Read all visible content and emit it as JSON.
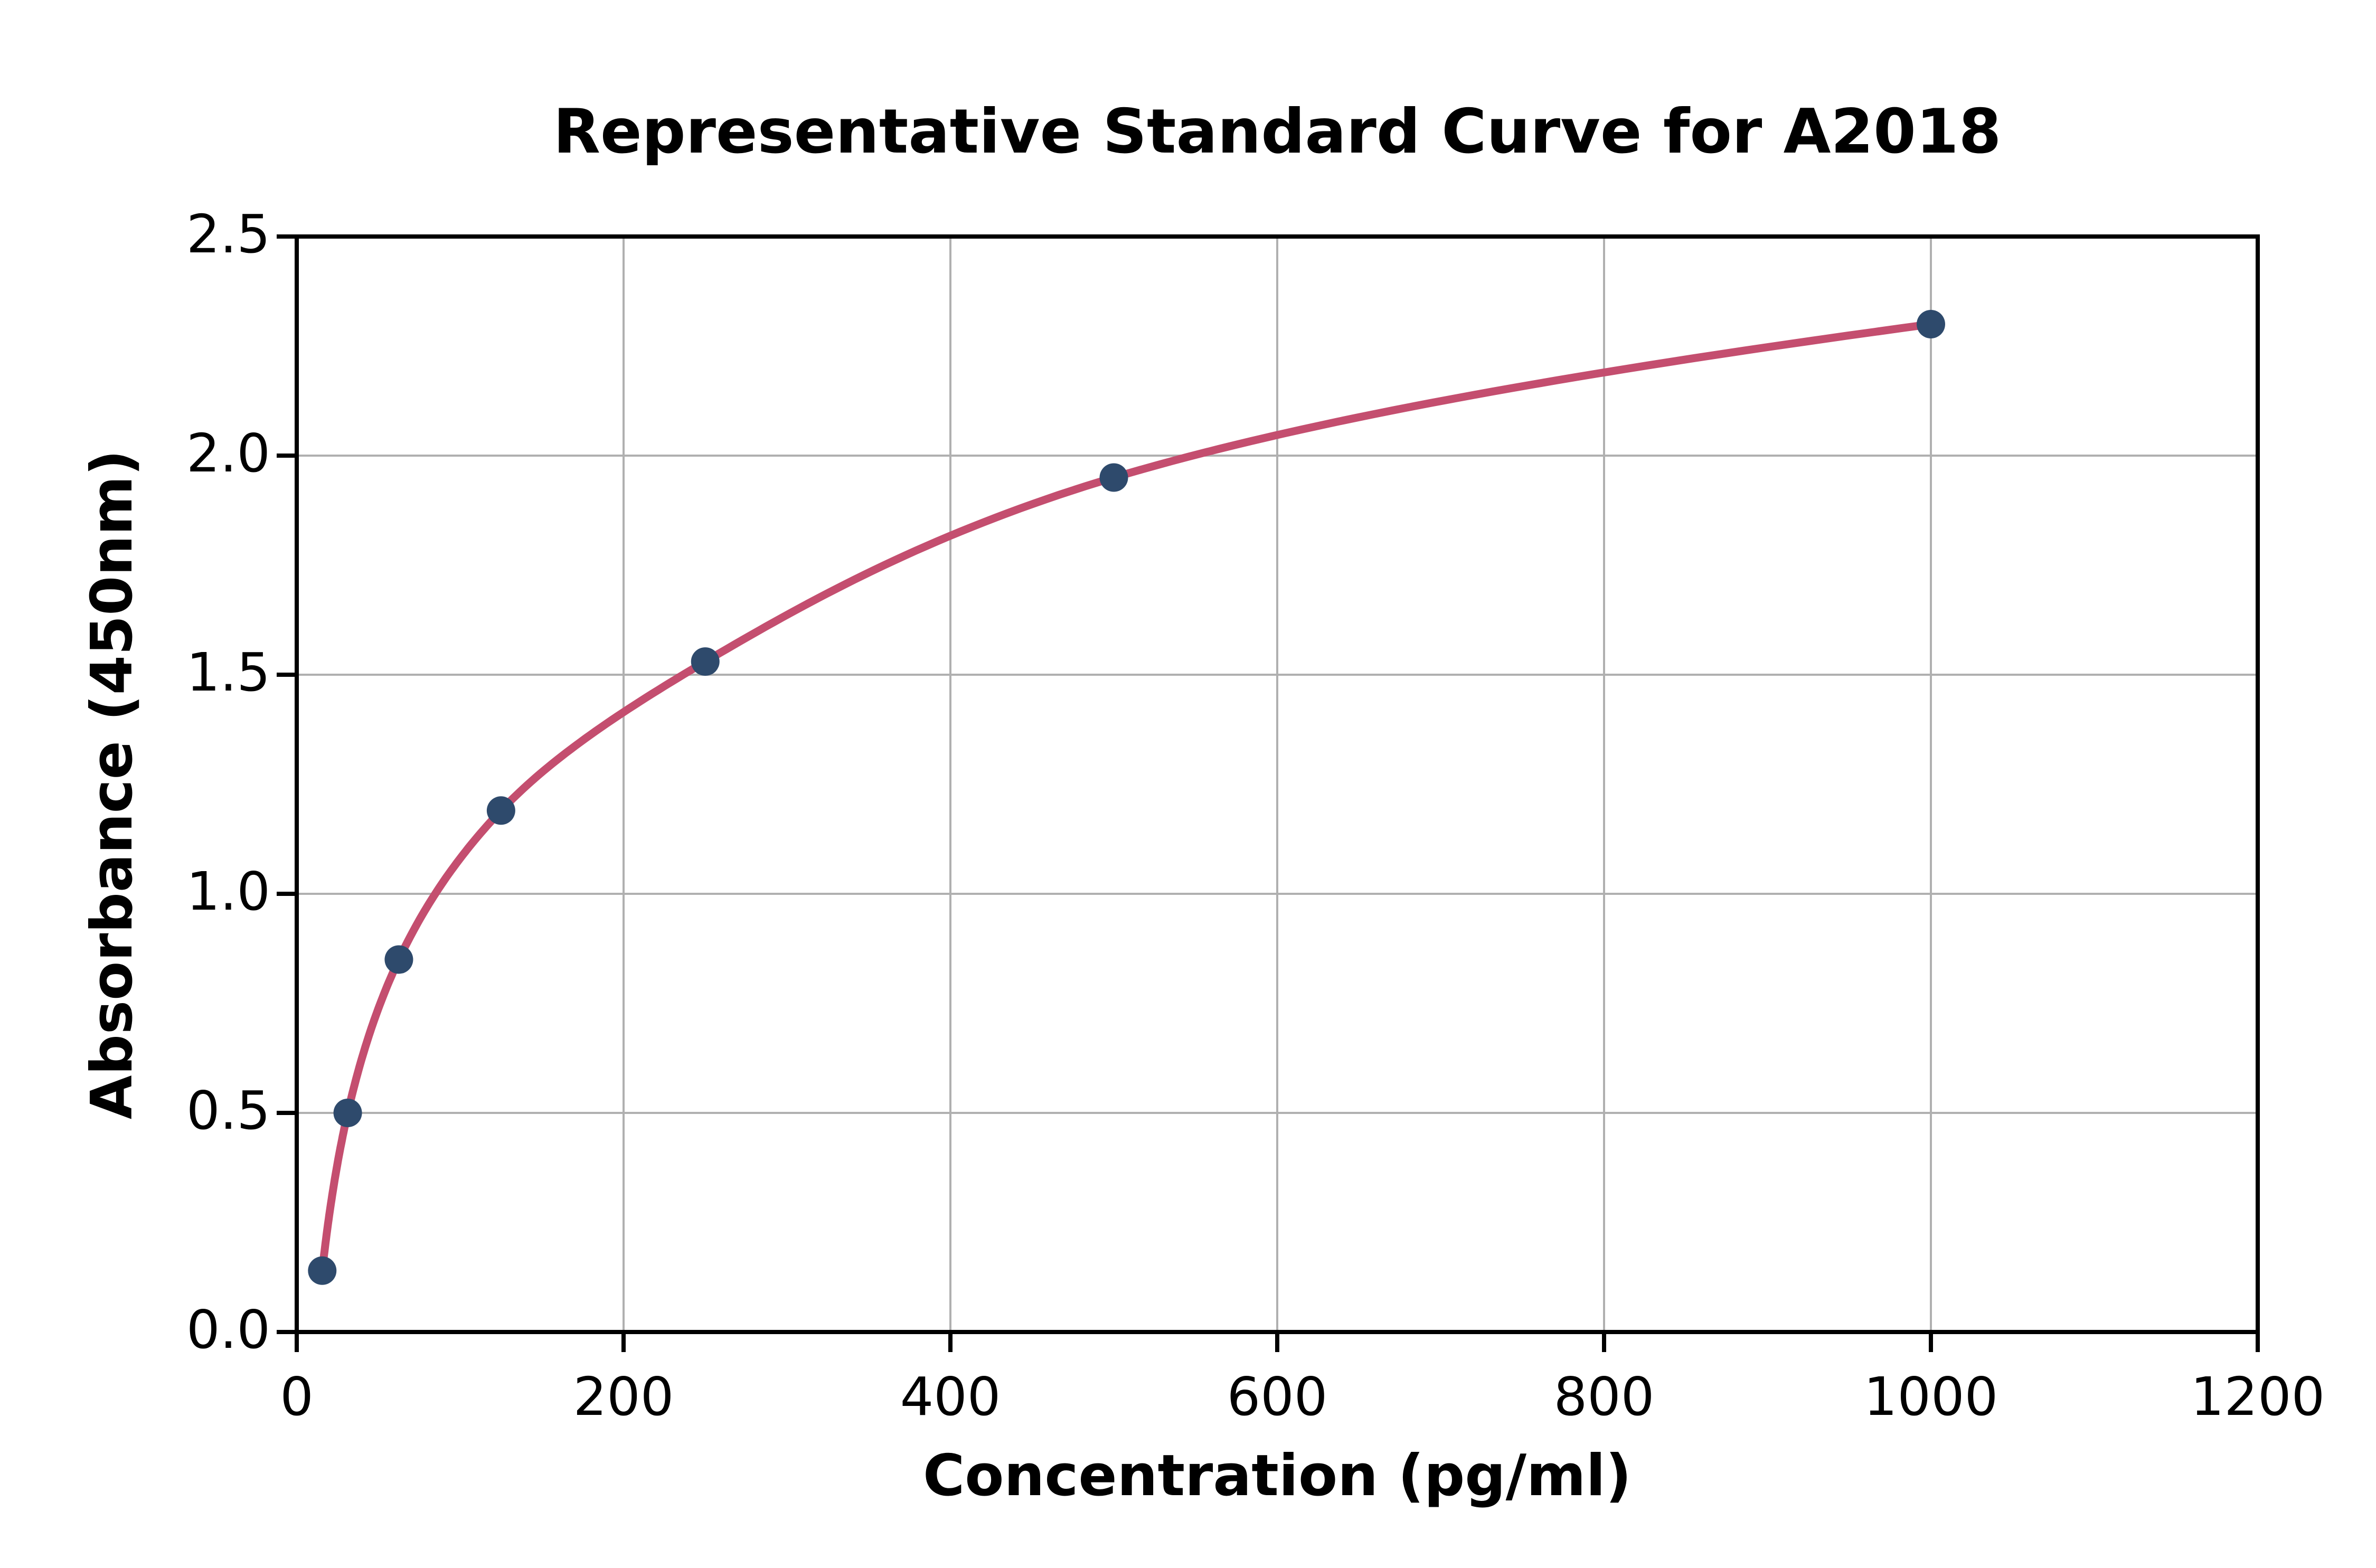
{
  "chart_data": {
    "type": "scatter",
    "title": "Representative Standard Curve for A2018",
    "xlabel": "Concentration (pg/ml)",
    "ylabel": "Absorbance (450nm)",
    "xlim": [
      0,
      1200
    ],
    "ylim": [
      0,
      2.5
    ],
    "x_ticks": [
      "0",
      "200",
      "400",
      "600",
      "800",
      "1000",
      "1200"
    ],
    "y_ticks": [
      "0.0",
      "0.5",
      "1.0",
      "1.5",
      "2.0",
      "2.5"
    ],
    "grid": true,
    "legend_position": "none",
    "series": [
      {
        "name": "standard-points",
        "type": "scatter",
        "x": [
          15.6,
          31.2,
          62.5,
          125,
          250,
          500,
          1000
        ],
        "y": [
          0.14,
          0.5,
          0.85,
          1.19,
          1.53,
          1.95,
          2.3
        ]
      },
      {
        "name": "fitted-curve",
        "type": "line",
        "note": "smooth 4PL-style fit through the standard points, drawn from first to last point"
      }
    ],
    "colors": {
      "marker": "#2e4a6c",
      "curve": "#c44e6f",
      "grid": "#b0b0b0",
      "spine": "#000000",
      "text": "#000000",
      "background": "#ffffff"
    }
  }
}
